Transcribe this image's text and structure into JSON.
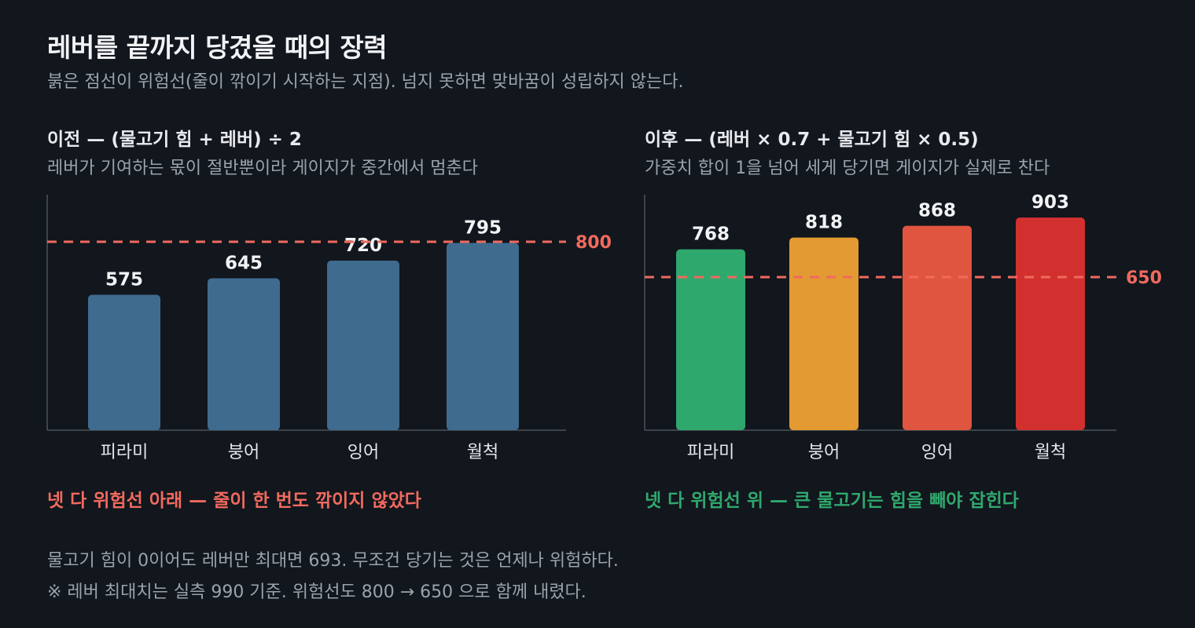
{
  "title": "레버를 끝까지 당겼을 때의 장력",
  "subtitle": "붉은 점선이 위험선(줄이 깎이기 시작하는 지점). 넘지 못하면 맞바꿈이 성립하지 않는다.",
  "colors": {
    "background": "#12161d",
    "danger_line": "#f06a5e",
    "before_bar": "#3f6b8f",
    "verdict_bad": "#f06a5e",
    "verdict_good": "#2fa86d",
    "axis": "#4a525c"
  },
  "chart_data": [
    {
      "type": "bar",
      "title": "이전 — (물고기 힘 + 레버) ÷ 2",
      "subtitle": "레버가 기여하는 몫이 절반뿐이라 게이지가 중간에서 멈춘다",
      "categories": [
        "피라미",
        "붕어",
        "잉어",
        "월척"
      ],
      "values": [
        575,
        645,
        720,
        795
      ],
      "value_labels": [
        "575",
        "645",
        "720",
        "795"
      ],
      "bar_colors": [
        "#3f6b8f",
        "#3f6b8f",
        "#3f6b8f",
        "#3f6b8f"
      ],
      "threshold": 800,
      "threshold_label": "800",
      "ylim": [
        0,
        1000
      ],
      "xlabel": "",
      "ylabel": "",
      "verdict": "넷 다 위험선 아래 — 줄이 한 번도 깎이지 않았다"
    },
    {
      "type": "bar",
      "title": "이후 — (레버 × 0.7 + 물고기 힘 × 0.5)",
      "subtitle": "가중치 합이 1을 넘어 세게 당기면 게이지가 실제로 찬다",
      "categories": [
        "피라미",
        "붕어",
        "잉어",
        "월척"
      ],
      "values": [
        768,
        818,
        868,
        903
      ],
      "value_labels": [
        "768",
        "818",
        "868",
        "903"
      ],
      "bar_colors": [
        "#2fa86d",
        "#e39a32",
        "#e0553f",
        "#d2302f"
      ],
      "threshold": 650,
      "threshold_label": "650",
      "ylim": [
        0,
        1000
      ],
      "xlabel": "",
      "ylabel": "",
      "verdict": "넷 다 위험선 위 — 큰 물고기는 힘을 빼야 잡힌다"
    }
  ],
  "footnotes": [
    "물고기 힘이 0이어도 레버만 최대면 693. 무조건 당기는 것은 언제나 위험하다.",
    "※ 레버 최대치는 실측 990 기준. 위험선도 800 → 650 으로 함께 내렸다."
  ]
}
